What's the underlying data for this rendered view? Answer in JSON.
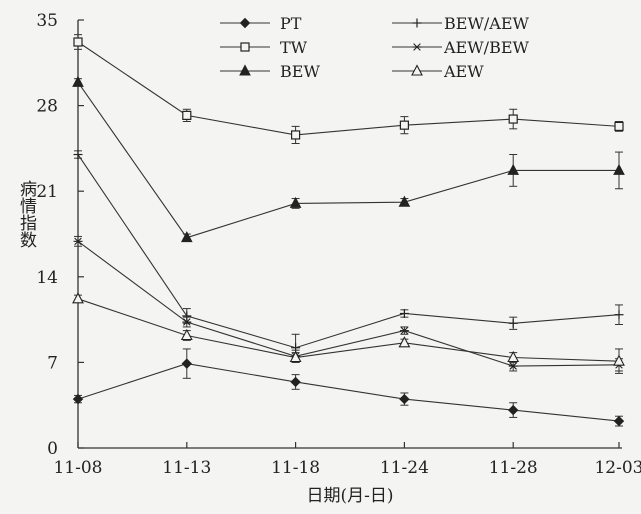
{
  "chart_data": {
    "type": "line",
    "xlabel": "日期(月-日)",
    "ylabel": "病情指数",
    "categories": [
      "11-08",
      "11-13",
      "11-18",
      "11-24",
      "11-28",
      "12-03"
    ],
    "ylim": [
      0,
      35
    ],
    "yticks": [
      0,
      7,
      14,
      21,
      28,
      35
    ],
    "grid": false,
    "legend_position": "top",
    "series": [
      {
        "name": "PT",
        "marker": "diamond-filled",
        "values": [
          4.0,
          6.9,
          5.4,
          4.0,
          3.1,
          2.2
        ],
        "errors": [
          0.3,
          1.2,
          0.6,
          0.5,
          0.6,
          0.4
        ]
      },
      {
        "name": "TW",
        "marker": "square-open",
        "values": [
          33.2,
          27.2,
          25.6,
          26.4,
          26.9,
          26.3
        ],
        "errors": [
          0.6,
          0.5,
          0.7,
          0.7,
          0.8,
          0.4
        ]
      },
      {
        "name": "BEW",
        "marker": "triangle-filled",
        "values": [
          29.9,
          17.2,
          20.0,
          20.1,
          22.7,
          22.7
        ],
        "errors": [
          0.3,
          0.3,
          0.4,
          0.3,
          1.3,
          1.5
        ]
      },
      {
        "name": "BEW/AEW",
        "marker": "plus",
        "values": [
          24.0,
          10.8,
          8.2,
          11.0,
          10.2,
          10.9
        ],
        "errors": [
          0.3,
          0.6,
          1.1,
          0.3,
          0.5,
          0.8
        ]
      },
      {
        "name": "AEW/BEW",
        "marker": "asterisk",
        "values": [
          16.9,
          10.3,
          7.5,
          9.6,
          6.7,
          6.8
        ],
        "errors": [
          0.4,
          0.4,
          0.5,
          0.3,
          0.4,
          0.5
        ]
      },
      {
        "name": "AEW",
        "marker": "triangle-open",
        "values": [
          12.2,
          9.2,
          7.4,
          8.6,
          7.4,
          7.1
        ],
        "errors": [
          0.3,
          0.4,
          0.4,
          0.3,
          0.4,
          1.0
        ]
      }
    ]
  }
}
